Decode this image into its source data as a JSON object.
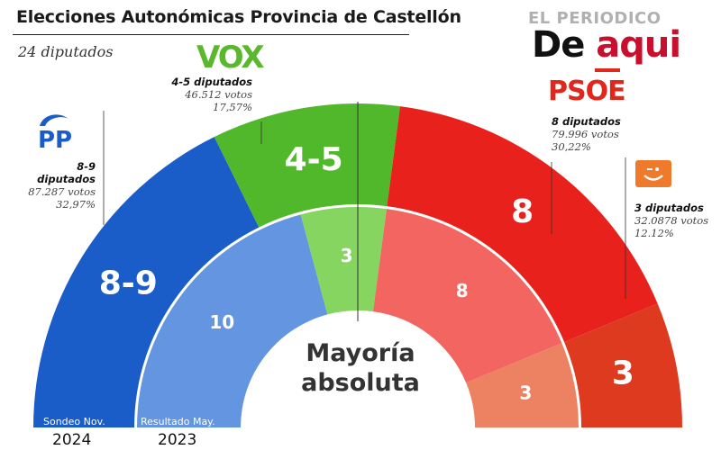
{
  "header": {
    "title": "Elecciones Autonómicas Provincia de Castellón",
    "subtitle": "24 diputados"
  },
  "brand": {
    "top": "EL PERIODICO",
    "main_prefix": "De ",
    "main_accent": "aqui"
  },
  "chart_data": {
    "type": "pie",
    "subtype": "parliament-hemicycle",
    "center_label_line1": "Mayoría",
    "center_label_line2": "absoluta",
    "outer_ring": {
      "label": "Sondeo",
      "label_suffix": "Nov.",
      "year": "2024",
      "slices": [
        {
          "party": "PP",
          "label": "8-9",
          "value": 8.5,
          "color": "#1a5dc8"
        },
        {
          "party": "VOX",
          "label": "4-5",
          "value": 4.5,
          "color": "#52b82b"
        },
        {
          "party": "PSOE",
          "label": "8",
          "value": 8,
          "color": "#e8211c"
        },
        {
          "party": "Compromís",
          "label": "3",
          "value": 3,
          "color": "#dd3a1f"
        }
      ]
    },
    "inner_ring": {
      "label": "Resultado",
      "label_suffix": "May.",
      "year": "2023",
      "slices": [
        {
          "party": "PP",
          "label": "10",
          "value": 10,
          "color": "#6395e0"
        },
        {
          "party": "VOX",
          "label": "3",
          "value": 3,
          "color": "#86d561"
        },
        {
          "party": "PSOE",
          "label": "8",
          "value": 8,
          "color": "#f26560"
        },
        {
          "party": "Compromís",
          "label": "3",
          "value": 3,
          "color": "#ec8262"
        }
      ]
    },
    "annotations": [
      {
        "party": "PP",
        "seats": "8-9 diputados",
        "votes": "87.287 votos",
        "pct": "32,97%"
      },
      {
        "party": "VOX",
        "seats": "4-5 diputados",
        "votes": "46.512 votos",
        "pct": "17,57%"
      },
      {
        "party": "PSOE",
        "seats": "8 diputados",
        "votes": "79.996 votos",
        "pct": "30,22%"
      },
      {
        "party": "Compromís",
        "seats": "3 diputados",
        "votes": "32.0878 votos",
        "pct": "12.12%"
      }
    ]
  },
  "logos": {
    "pp": "PP",
    "vox": "VOX",
    "psoe": "PSOE",
    "compromis_icon": "smile-icon"
  }
}
